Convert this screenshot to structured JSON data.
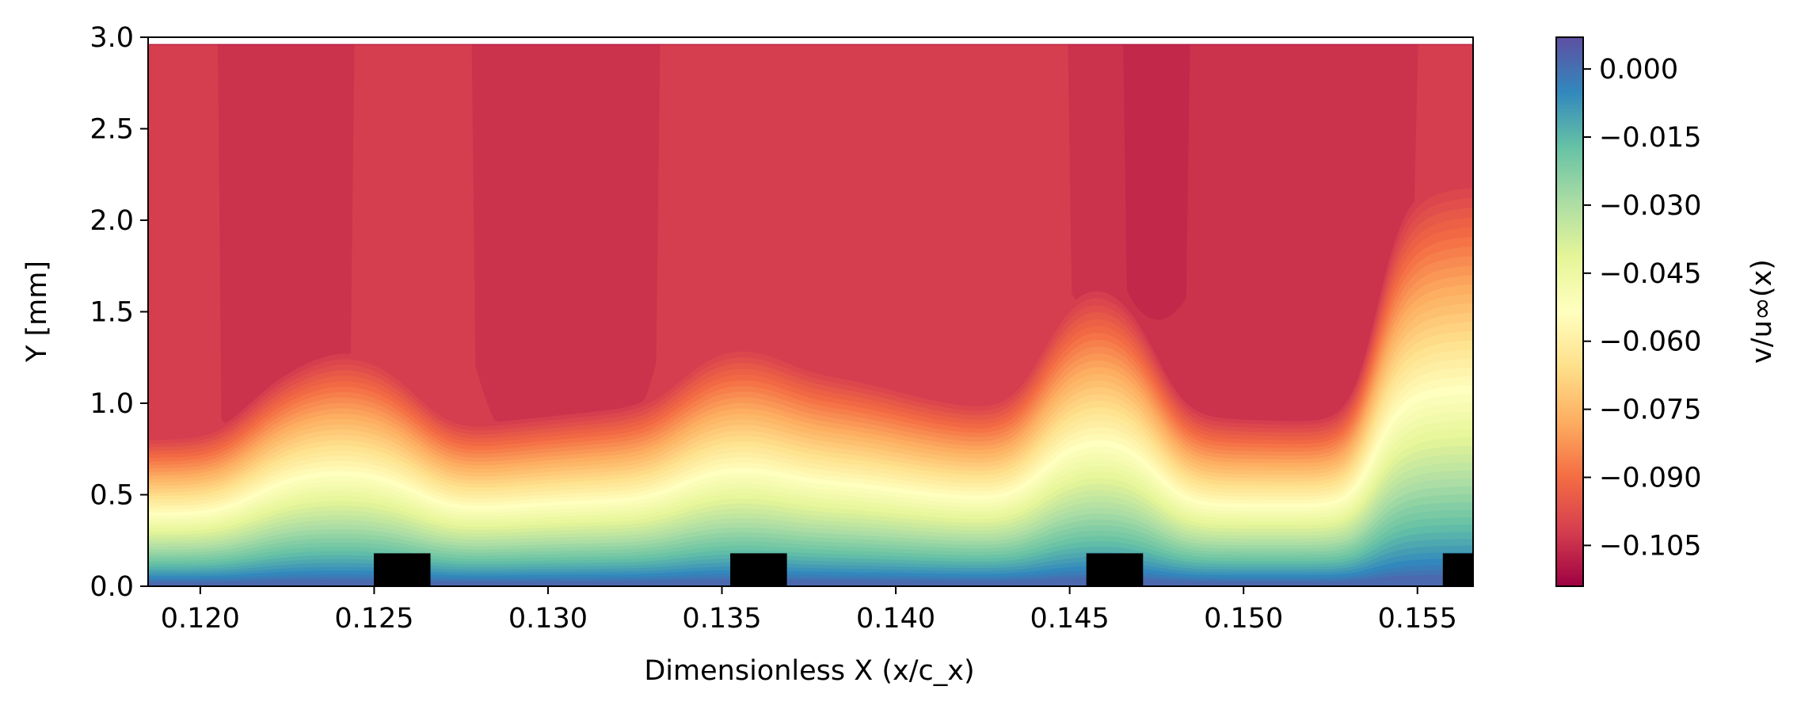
{
  "chart_data": {
    "type": "heatmap",
    "subtype": "filled-contour",
    "title": "",
    "xlabel": "Dimensionless X (x/c_x)",
    "ylabel": "Y [mm]",
    "xlim": [
      0.1185,
      0.1566
    ],
    "ylim": [
      0.0,
      3.0
    ],
    "x_ticks": [
      {
        "value": 0.12,
        "label": "0.120"
      },
      {
        "value": 0.125,
        "label": "0.125"
      },
      {
        "value": 0.13,
        "label": "0.130"
      },
      {
        "value": 0.135,
        "label": "0.135"
      },
      {
        "value": 0.14,
        "label": "0.140"
      },
      {
        "value": 0.145,
        "label": "0.145"
      },
      {
        "value": 0.15,
        "label": "0.150"
      },
      {
        "value": 0.155,
        "label": "0.155"
      }
    ],
    "y_ticks": [
      {
        "value": 0.0,
        "label": "0.0"
      },
      {
        "value": 0.5,
        "label": "0.5"
      },
      {
        "value": 1.0,
        "label": "1.0"
      },
      {
        "value": 1.5,
        "label": "1.5"
      },
      {
        "value": 2.0,
        "label": "2.0"
      },
      {
        "value": 2.5,
        "label": "2.5"
      },
      {
        "value": 3.0,
        "label": "3.0"
      }
    ],
    "colorbar": {
      "label": "v/u∞(x)",
      "range": [
        -0.114,
        0.007
      ],
      "colormap": "Spectral",
      "ticks": [
        {
          "value": 0.0,
          "label": "0.000"
        },
        {
          "value": -0.015,
          "label": "−0.015"
        },
        {
          "value": -0.03,
          "label": "−0.030"
        },
        {
          "value": -0.045,
          "label": "−0.045"
        },
        {
          "value": -0.06,
          "label": "−0.060"
        },
        {
          "value": -0.075,
          "label": "−0.075"
        },
        {
          "value": -0.09,
          "label": "−0.090"
        },
        {
          "value": -0.105,
          "label": "−0.105"
        }
      ]
    },
    "grid": false,
    "field_model": {
      "top_value": -0.104,
      "wall_value": 0.0,
      "peaks": [
        {
          "x": 0.125,
          "y_max": 0.75
        },
        {
          "x": 0.1352,
          "y_max": 0.8
        },
        {
          "x": 0.1458,
          "y_max": 0.95
        },
        {
          "x": 0.1559,
          "y_max": 1.15
        }
      ],
      "troughs": [
        {
          "x": 0.1275,
          "y_max": 0.42
        },
        {
          "x": 0.13,
          "y_max": 0.5
        },
        {
          "x": 0.133,
          "y_max": 0.5
        },
        {
          "x": 0.138,
          "y_max": 0.62
        },
        {
          "x": 0.142,
          "y_max": 0.5
        },
        {
          "x": 0.15,
          "y_max": 0.47
        }
      ],
      "dark_streaks": [
        {
          "x": 0.1225,
          "y_center": 1.95,
          "half_width": 0.0012
        },
        {
          "x": 0.1305,
          "y_center": 2.1,
          "half_width": 0.0015
        },
        {
          "x": 0.1475,
          "y_center": 2.3,
          "half_width": 0.0013
        },
        {
          "x": 0.152,
          "y_center": 1.85,
          "half_width": 0.002
        }
      ]
    },
    "roughness_elements": [
      {
        "x_start": 0.12499,
        "x_end": 0.12662,
        "height": 0.18
      },
      {
        "x_start": 0.13524,
        "x_end": 0.13687,
        "height": 0.18
      },
      {
        "x_start": 0.14548,
        "x_end": 0.14711,
        "height": 0.18
      },
      {
        "x_start": 0.15573,
        "x_end": 0.1566,
        "height": 0.18
      }
    ],
    "roughness_color": "#000000"
  }
}
